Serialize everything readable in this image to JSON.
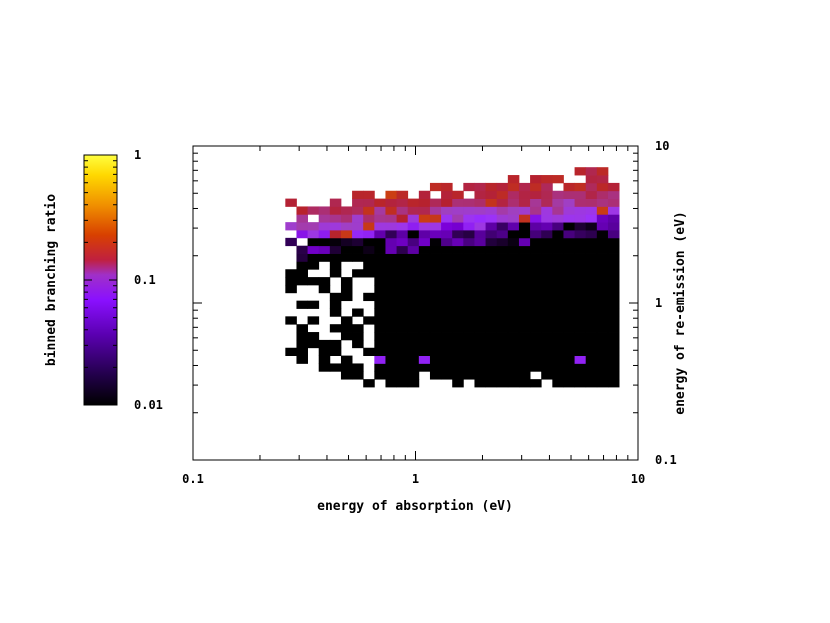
{
  "chart_data": {
    "type": "heatmap",
    "title": "",
    "xlabel": "energy of absorption (eV)",
    "ylabel": "energy of re-emission (eV)",
    "colorbar_label": "binned branching ratio",
    "x_scale": "log",
    "y_scale": "log",
    "color_scale": "log",
    "xlim": [
      0.1,
      10
    ],
    "ylim": [
      0.1,
      10
    ],
    "clim": [
      0.01,
      1
    ],
    "x_ticks": [
      "0.1",
      "1",
      "10"
    ],
    "y_ticks": [
      "0.1",
      "1",
      "10"
    ],
    "color_ticks": [
      "1",
      "0.1",
      "0.01"
    ],
    "y_axis_side": "right",
    "colorbar_position": "left",
    "grid": false,
    "bins_per_decade": 20,
    "colormap": [
      "#000000",
      "#3a0066",
      "#7a00d8",
      "#9b30ff",
      "#a040c0",
      "#b52030",
      "#d85000",
      "#f0a000",
      "#ffe000",
      "#ffff40"
    ],
    "x_range_of_data": [
      0.26,
      7.5
    ],
    "y_range_of_data": [
      0.26,
      8.0
    ]
  }
}
